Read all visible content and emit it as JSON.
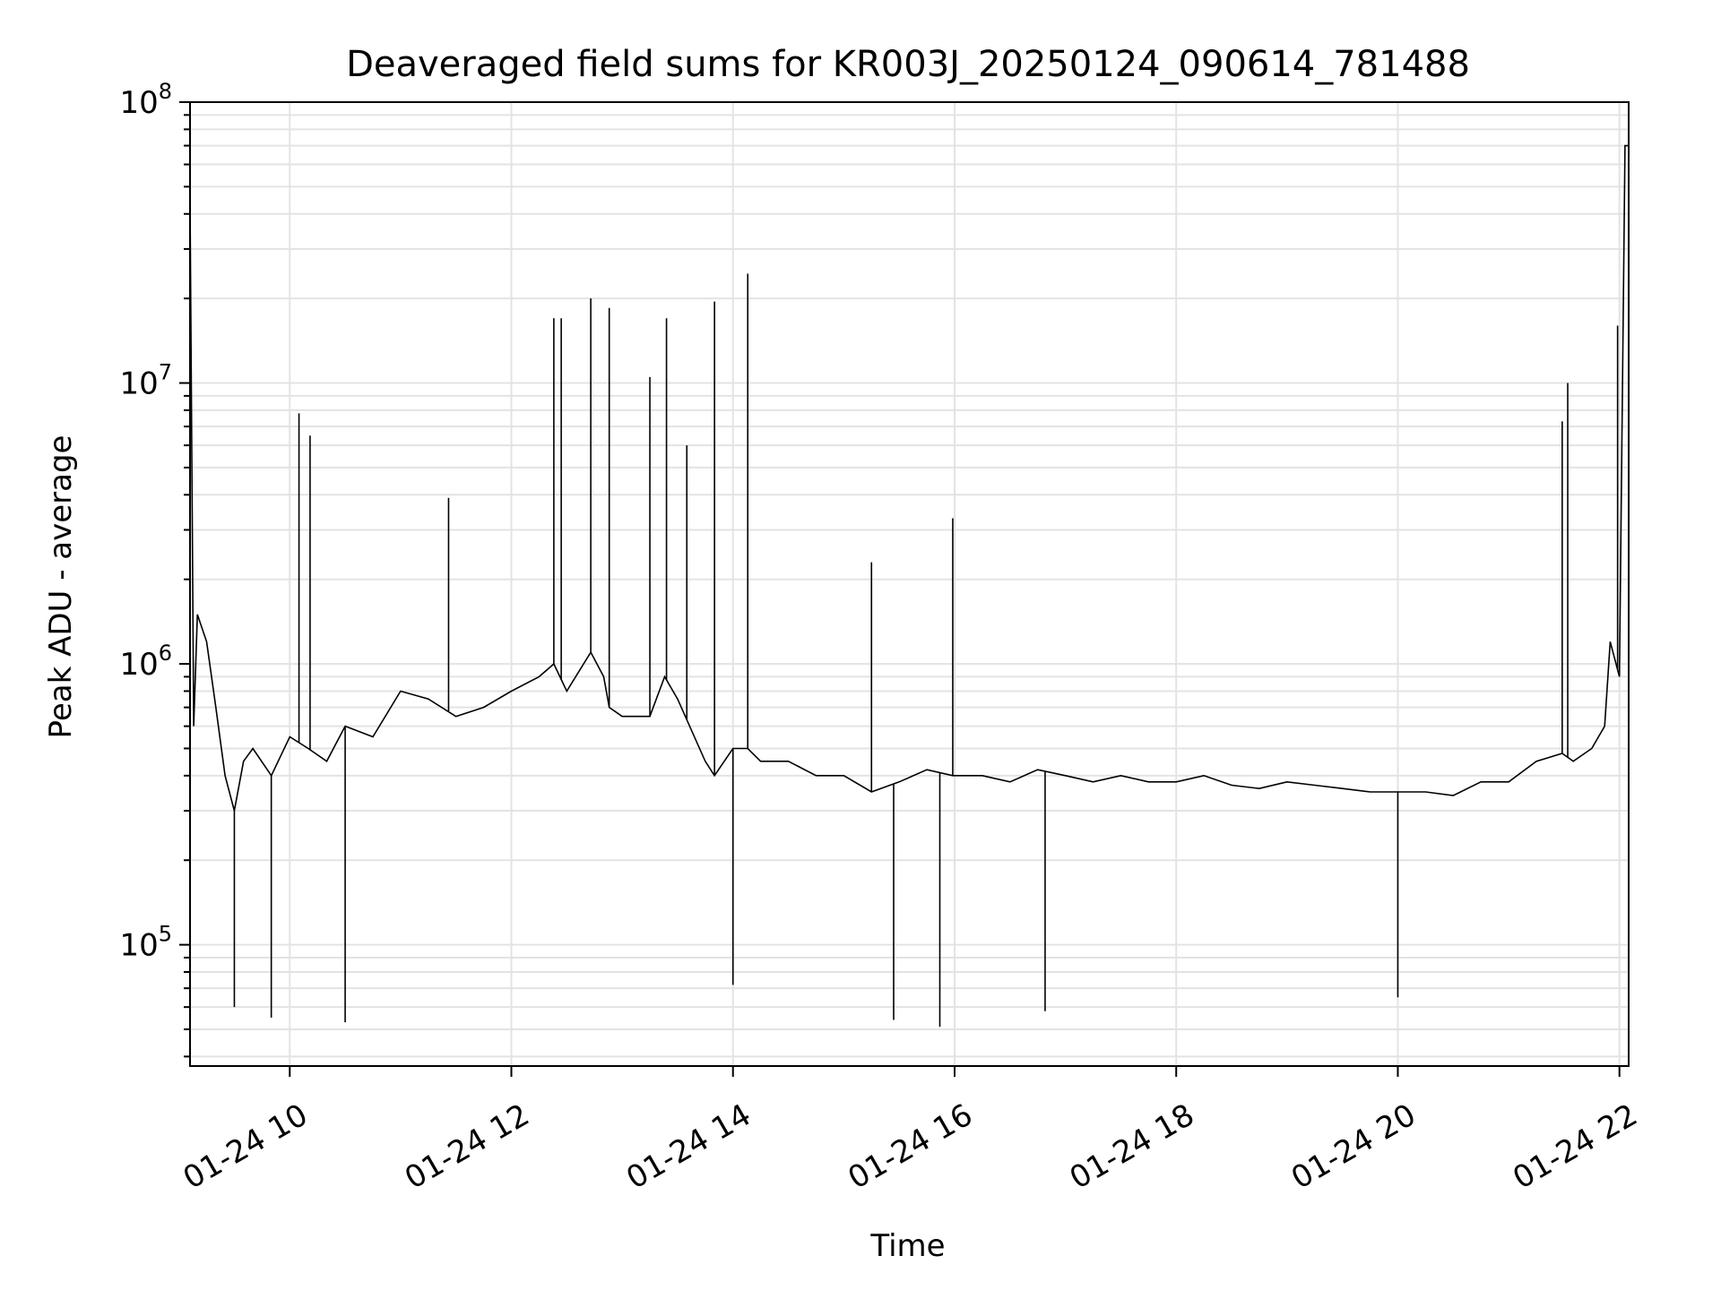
{
  "chart_data": {
    "type": "line",
    "title": "Deaveraged field sums for KR003J_20250124_090614_781488",
    "xlabel": "Time",
    "ylabel": "Peak ADU - average",
    "yscale": "log",
    "ylim": [
      37000,
      100000000
    ],
    "xlim": [
      "2025-01-24 09:06",
      "2025-01-24 22:05"
    ],
    "x_ticks": [
      "01-24 10",
      "01-24 12",
      "01-24 14",
      "01-24 16",
      "01-24 18",
      "01-24 20",
      "01-24 22"
    ],
    "y_ticks": [
      {
        "base": "10",
        "exp": "5",
        "value": 100000
      },
      {
        "base": "10",
        "exp": "6",
        "value": 1000000
      },
      {
        "base": "10",
        "exp": "7",
        "value": 10000000
      },
      {
        "base": "10",
        "exp": "8",
        "value": 100000000
      }
    ],
    "grid": true,
    "line_color": "#000000",
    "series": [
      {
        "x": [
          "2025-01-24 09:06",
          "2025-01-24 09:08",
          "2025-01-24 09:10",
          "2025-01-24 09:15",
          "2025-01-24 09:20",
          "2025-01-24 09:25",
          "2025-01-24 09:30",
          "2025-01-24 09:35",
          "2025-01-24 09:40",
          "2025-01-24 09:50",
          "2025-01-24 10:00",
          "2025-01-24 10:10",
          "2025-01-24 10:20",
          "2025-01-24 10:30",
          "2025-01-24 10:45",
          "2025-01-24 11:00",
          "2025-01-24 11:15",
          "2025-01-24 11:30",
          "2025-01-24 11:45",
          "2025-01-24 12:00",
          "2025-01-24 12:15",
          "2025-01-24 12:23",
          "2025-01-24 12:30",
          "2025-01-24 12:43",
          "2025-01-24 12:50",
          "2025-01-24 12:53",
          "2025-01-24 13:00",
          "2025-01-24 13:15",
          "2025-01-24 13:23",
          "2025-01-24 13:30",
          "2025-01-24 13:45",
          "2025-01-24 13:50",
          "2025-01-24 14:00",
          "2025-01-24 14:08",
          "2025-01-24 14:15",
          "2025-01-24 14:30",
          "2025-01-24 14:45",
          "2025-01-24 15:00",
          "2025-01-24 15:15",
          "2025-01-24 15:30",
          "2025-01-24 15:45",
          "2025-01-24 15:59",
          "2025-01-24 16:15",
          "2025-01-24 16:30",
          "2025-01-24 16:45",
          "2025-01-24 17:00",
          "2025-01-24 17:15",
          "2025-01-24 17:30",
          "2025-01-24 17:45",
          "2025-01-24 18:00",
          "2025-01-24 18:15",
          "2025-01-24 18:30",
          "2025-01-24 18:45",
          "2025-01-24 19:00",
          "2025-01-24 19:15",
          "2025-01-24 19:30",
          "2025-01-24 19:45",
          "2025-01-24 20:00",
          "2025-01-24 20:15",
          "2025-01-24 20:30",
          "2025-01-24 20:45",
          "2025-01-24 21:00",
          "2025-01-24 21:15",
          "2025-01-24 21:29",
          "2025-01-24 21:35",
          "2025-01-24 21:45",
          "2025-01-24 21:52",
          "2025-01-24 21:55",
          "2025-01-24 22:00",
          "2025-01-24 22:03",
          "2025-01-24 22:05"
        ],
        "y": [
          45000000,
          600000,
          1500000,
          1200000,
          700000,
          400000,
          300000,
          450000,
          500000,
          400000,
          550000,
          500000,
          450000,
          600000,
          550000,
          800000,
          750000,
          650000,
          700000,
          800000,
          900000,
          1000000,
          800000,
          1100000,
          900000,
          700000,
          650000,
          650000,
          900000,
          750000,
          450000,
          400000,
          500000,
          500000,
          450000,
          450000,
          400000,
          400000,
          350000,
          380000,
          420000,
          400000,
          400000,
          380000,
          420000,
          400000,
          380000,
          400000,
          380000,
          380000,
          400000,
          370000,
          360000,
          380000,
          370000,
          360000,
          350000,
          350000,
          350000,
          340000,
          380000,
          380000,
          450000,
          480000,
          450000,
          500000,
          600000,
          1200000,
          900000,
          70000000,
          70000000
        ]
      }
    ],
    "spikes": [
      {
        "x": "2025-01-24 10:05",
        "y": 7800000
      },
      {
        "x": "2025-01-24 10:11",
        "y": 6500000
      },
      {
        "x": "2025-01-24 11:26",
        "y": 3900000
      },
      {
        "x": "2025-01-24 12:23",
        "y": 17000000
      },
      {
        "x": "2025-01-24 12:27",
        "y": 17000000
      },
      {
        "x": "2025-01-24 12:43",
        "y": 20000000
      },
      {
        "x": "2025-01-24 12:53",
        "y": 18500000
      },
      {
        "x": "2025-01-24 13:15",
        "y": 10500000
      },
      {
        "x": "2025-01-24 13:24",
        "y": 17000000
      },
      {
        "x": "2025-01-24 13:35",
        "y": 6000000
      },
      {
        "x": "2025-01-24 13:50",
        "y": 19500000
      },
      {
        "x": "2025-01-24 14:08",
        "y": 24500000
      },
      {
        "x": "2025-01-24 15:15",
        "y": 2300000
      },
      {
        "x": "2025-01-24 15:59",
        "y": 3300000
      },
      {
        "x": "2025-01-24 21:29",
        "y": 7300000
      },
      {
        "x": "2025-01-24 21:32",
        "y": 10000000
      },
      {
        "x": "2025-01-24 21:59",
        "y": 16000000
      }
    ],
    "dips": [
      {
        "x": "2025-01-24 09:30",
        "y": 60000
      },
      {
        "x": "2025-01-24 09:50",
        "y": 55000
      },
      {
        "x": "2025-01-24 10:30",
        "y": 53000
      },
      {
        "x": "2025-01-24 14:00",
        "y": 72000
      },
      {
        "x": "2025-01-24 15:27",
        "y": 54000
      },
      {
        "x": "2025-01-24 15:52",
        "y": 51000
      },
      {
        "x": "2025-01-24 16:49",
        "y": 58000
      },
      {
        "x": "2025-01-24 20:00",
        "y": 65000
      }
    ]
  }
}
